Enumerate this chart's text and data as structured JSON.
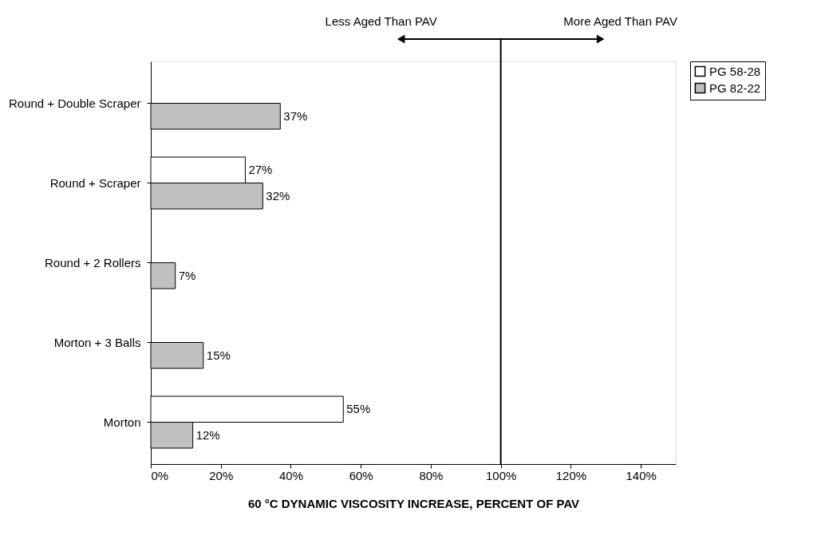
{
  "chart_data": {
    "type": "bar",
    "orientation": "horizontal",
    "xlabel": "60 °C DYNAMIC VISCOSITY INCREASE, PERCENT OF PAV",
    "categories": [
      "Round + Double Scraper",
      "Round + Scraper",
      "Round + 2 Rollers",
      "Morton + 3 Balls",
      "Morton"
    ],
    "series": [
      {
        "name": "PG 58-28",
        "color": "#ffffff",
        "values": [
          null,
          27,
          null,
          null,
          55
        ],
        "value_labels": [
          null,
          "27%",
          null,
          null,
          "55%"
        ]
      },
      {
        "name": "PG 82-22",
        "color": "#c0c0c0",
        "values": [
          37,
          32,
          7,
          15,
          12
        ],
        "value_labels": [
          "37%",
          "32%",
          "7%",
          "15%",
          "12%"
        ]
      }
    ],
    "xlim": [
      0,
      150
    ],
    "xticks": [
      {
        "value": 0,
        "label": "0%"
      },
      {
        "value": 20,
        "label": "20%"
      },
      {
        "value": 40,
        "label": "40%"
      },
      {
        "value": 60,
        "label": "60%"
      },
      {
        "value": 80,
        "label": "80%"
      },
      {
        "value": 100,
        "label": "100%"
      },
      {
        "value": 120,
        "label": "120%"
      },
      {
        "value": 140,
        "label": "140%"
      }
    ],
    "ref_lines": [
      {
        "axis": "x",
        "value": 100,
        "color": "#000000"
      }
    ],
    "annotations": [
      "Less Aged Than PAV",
      "More Aged Than PAV"
    ],
    "grid": false,
    "legend": "right"
  }
}
